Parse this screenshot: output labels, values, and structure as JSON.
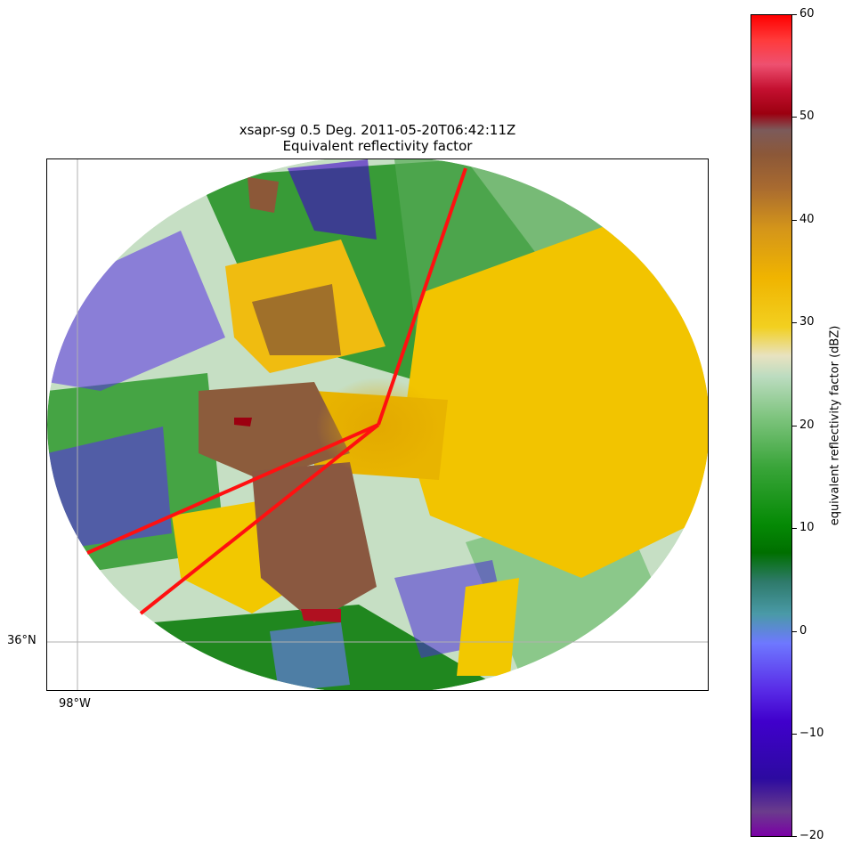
{
  "figure": {
    "title_line1": "xsapr-sg 0.5 Deg. 2011-05-20T06:42:11Z",
    "title_line2": "Equivalent reflectivity factor"
  },
  "map": {
    "lat_label": "36°N",
    "lon_label": "98°W",
    "gridline_color": "#b0b0b0"
  },
  "colorbar": {
    "label": "equivalent reflectivity factor (dBZ)",
    "ticks": [
      "60",
      "50",
      "40",
      "30",
      "20",
      "10",
      "0",
      "−10",
      "−20"
    ],
    "range": [
      -20,
      60
    ],
    "colors": {
      "min": "#7a00a6",
      "blue": "#6e78ff",
      "green": "#006f00",
      "light": "#e8e2c0",
      "yellow": "#f2d020",
      "brown": "#8c5838",
      "red": "#ff0000"
    }
  }
}
